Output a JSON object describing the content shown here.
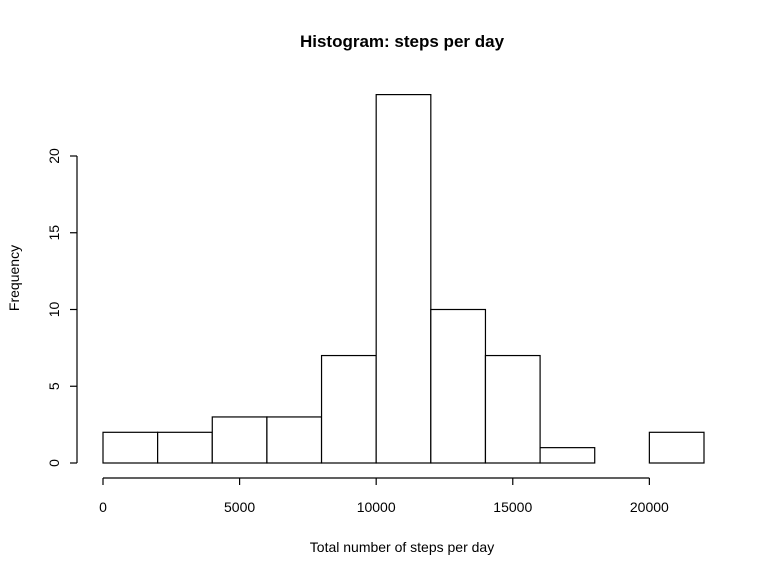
{
  "chart_data": {
    "type": "bar",
    "title": "Histogram: steps per day",
    "xlabel": "Total number of steps per day",
    "ylabel": "Frequency",
    "bins": [
      {
        "start": 0,
        "end": 2000,
        "count": 2
      },
      {
        "start": 2000,
        "end": 4000,
        "count": 2
      },
      {
        "start": 4000,
        "end": 6000,
        "count": 3
      },
      {
        "start": 6000,
        "end": 8000,
        "count": 3
      },
      {
        "start": 8000,
        "end": 10000,
        "count": 7
      },
      {
        "start": 10000,
        "end": 12000,
        "count": 24
      },
      {
        "start": 12000,
        "end": 14000,
        "count": 10
      },
      {
        "start": 14000,
        "end": 16000,
        "count": 7
      },
      {
        "start": 16000,
        "end": 18000,
        "count": 1
      },
      {
        "start": 18000,
        "end": 20000,
        "count": 0
      },
      {
        "start": 20000,
        "end": 22000,
        "count": 2
      }
    ],
    "xlim": [
      0,
      22000
    ],
    "ylim": [
      0,
      24
    ],
    "xticks": [
      "0",
      "5000",
      "10000",
      "15000",
      "20000"
    ],
    "yticks": [
      "0",
      "5",
      "10",
      "15",
      "20"
    ],
    "grid": false,
    "legend": "none",
    "colors": {
      "bar_fill": "#ffffff",
      "bar_stroke": "#000000"
    }
  }
}
